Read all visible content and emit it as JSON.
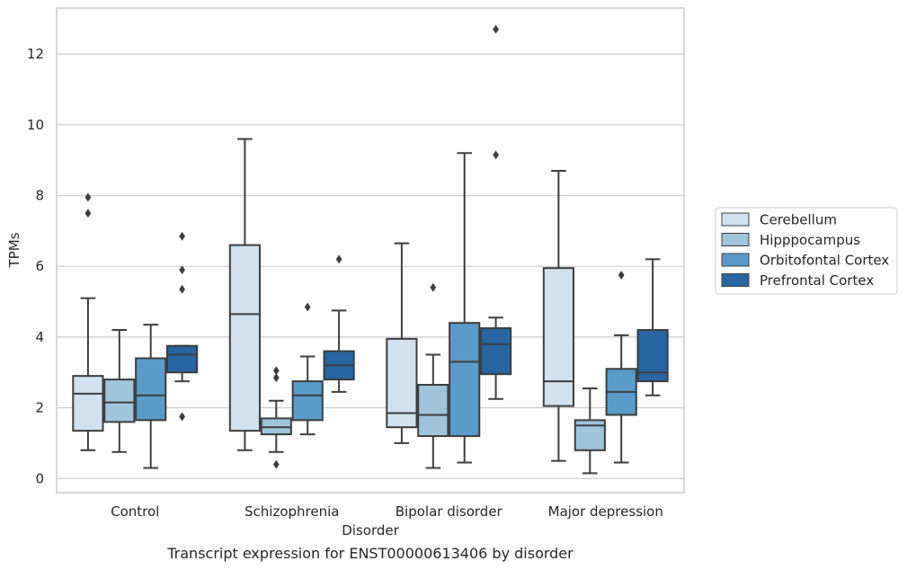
{
  "chart_data": {
    "type": "box",
    "title": "",
    "xlabel": "Disorder",
    "ylabel": "TPMs",
    "caption": "Transcript expression for ENST00000613406 by disorder",
    "categories": [
      "Control",
      "Schizophrenia",
      "Bipolar disorder",
      "Major depression"
    ],
    "ylim": [
      -0.4,
      13.3
    ],
    "yticks": [
      0,
      2,
      4,
      6,
      8,
      10,
      12
    ],
    "grid": "horizontal",
    "legend_position": "right",
    "series": [
      {
        "name": "Cerebellum",
        "color": "#d1e1f0",
        "boxes": [
          {
            "whislo": 0.8,
            "q1": 1.35,
            "med": 2.4,
            "q3": 2.9,
            "whishi": 5.1,
            "fliers": [
              7.5,
              7.95
            ]
          },
          {
            "whislo": 0.8,
            "q1": 1.35,
            "med": 4.65,
            "q3": 6.6,
            "whishi": 9.6,
            "fliers": []
          },
          {
            "whislo": 1.0,
            "q1": 1.45,
            "med": 1.85,
            "q3": 3.95,
            "whishi": 6.65,
            "fliers": []
          },
          {
            "whislo": 0.5,
            "q1": 2.05,
            "med": 2.75,
            "q3": 5.95,
            "whishi": 8.7,
            "fliers": []
          }
        ]
      },
      {
        "name": "Hipppocampus",
        "color": "#9fc4dc",
        "boxes": [
          {
            "whislo": 0.75,
            "q1": 1.6,
            "med": 2.15,
            "q3": 2.8,
            "whishi": 4.2,
            "fliers": []
          },
          {
            "whislo": 0.75,
            "q1": 1.25,
            "med": 1.45,
            "q3": 1.7,
            "whishi": 2.2,
            "fliers": [
              0.4,
              2.85,
              3.05
            ]
          },
          {
            "whislo": 0.3,
            "q1": 1.2,
            "med": 1.8,
            "q3": 2.65,
            "whishi": 3.5,
            "fliers": [
              5.4
            ]
          },
          {
            "whislo": 0.15,
            "q1": 0.8,
            "med": 1.5,
            "q3": 1.65,
            "whishi": 2.55,
            "fliers": []
          }
        ]
      },
      {
        "name": "Orbitofontal Cortex",
        "color": "#5a9bc9",
        "boxes": [
          {
            "whislo": 0.3,
            "q1": 1.65,
            "med": 2.35,
            "q3": 3.4,
            "whishi": 4.35,
            "fliers": []
          },
          {
            "whislo": 1.25,
            "q1": 1.65,
            "med": 2.35,
            "q3": 2.75,
            "whishi": 3.45,
            "fliers": [
              4.85
            ]
          },
          {
            "whislo": 0.45,
            "q1": 1.2,
            "med": 3.3,
            "q3": 4.4,
            "whishi": 9.2,
            "fliers": []
          },
          {
            "whislo": 0.45,
            "q1": 1.8,
            "med": 2.45,
            "q3": 3.1,
            "whishi": 4.05,
            "fliers": [
              5.75
            ]
          }
        ]
      },
      {
        "name": "Prefrontal Cortex",
        "color": "#2866a3",
        "boxes": [
          {
            "whislo": 2.75,
            "q1": 3.0,
            "med": 3.5,
            "q3": 3.75,
            "whishi": 3.75,
            "fliers": [
              1.75,
              5.35,
              5.9,
              6.85
            ]
          },
          {
            "whislo": 2.45,
            "q1": 2.8,
            "med": 3.2,
            "q3": 3.6,
            "whishi": 4.75,
            "fliers": [
              6.2
            ]
          },
          {
            "whislo": 2.25,
            "q1": 2.95,
            "med": 3.8,
            "q3": 4.25,
            "whishi": 4.55,
            "fliers": [
              9.15,
              12.7
            ]
          },
          {
            "whislo": 2.35,
            "q1": 2.75,
            "med": 3.0,
            "q3": 4.2,
            "whishi": 6.2,
            "fliers": []
          }
        ]
      }
    ]
  }
}
